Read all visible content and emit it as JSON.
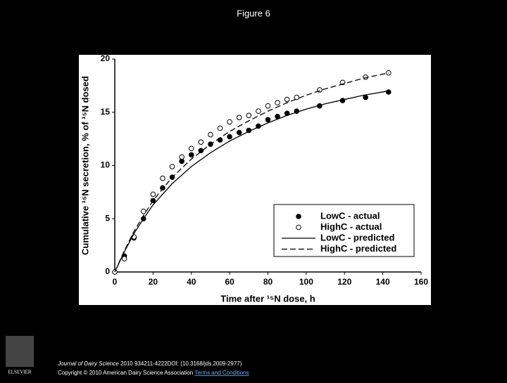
{
  "title": "Figure 6",
  "chart_data": {
    "type": "scatter",
    "xlabel": "Time after ¹⁵N dose, h",
    "ylabel": "Cumulative ¹⁵N secretion, % of ¹⁵N dosed",
    "xlim": [
      0,
      160
    ],
    "xticks": [
      0,
      20,
      40,
      60,
      80,
      100,
      120,
      140,
      160
    ],
    "ylim": [
      0,
      20
    ],
    "yticks": [
      0,
      5,
      10,
      15,
      20
    ],
    "legend": "lower right",
    "series": [
      {
        "name": "LowC - actual",
        "color": "#000000",
        "marker": "filled",
        "x": [
          5,
          10,
          15,
          20,
          25,
          30,
          35,
          40,
          45,
          50,
          55,
          60,
          65,
          70,
          75,
          80,
          85,
          90,
          95,
          107,
          119,
          131,
          143
        ],
        "values": [
          1.5,
          3.2,
          5.0,
          6.7,
          7.9,
          8.9,
          10.4,
          11.0,
          11.4,
          12.0,
          12.4,
          12.7,
          13.1,
          13.3,
          13.7,
          14.3,
          14.6,
          14.9,
          15.1,
          15.6,
          16.1,
          16.4,
          16.9
        ]
      },
      {
        "name": "HighC - actual",
        "color": "#000000",
        "marker": "open",
        "x": [
          0,
          5,
          10,
          15,
          20,
          25,
          30,
          35,
          40,
          45,
          50,
          55,
          60,
          65,
          70,
          75,
          80,
          85,
          90,
          95,
          107,
          119,
          131,
          143
        ],
        "values": [
          0,
          1.25,
          3.3,
          5.7,
          7.3,
          8.8,
          9.9,
          10.8,
          11.6,
          12.2,
          12.9,
          13.5,
          14.1,
          14.5,
          14.7,
          15.1,
          15.6,
          15.9,
          16.2,
          16.4,
          17.1,
          17.8,
          18.3,
          18.7
        ]
      },
      {
        "name": "LowC - predicted",
        "color": "#000000",
        "line": "solid",
        "x": [
          0,
          5,
          10,
          15,
          20,
          30,
          40,
          50,
          60,
          70,
          80,
          90,
          100,
          110,
          120,
          130,
          143
        ],
        "values": [
          0,
          1.9,
          3.6,
          5.0,
          6.3,
          8.3,
          9.9,
          11.2,
          12.3,
          13.2,
          14.0,
          14.7,
          15.3,
          15.8,
          16.2,
          16.6,
          17.0
        ]
      },
      {
        "name": "HighC - predicted",
        "color": "#000000",
        "line": "dashed",
        "x": [
          0,
          5,
          10,
          15,
          20,
          30,
          40,
          50,
          60,
          70,
          80,
          90,
          100,
          110,
          120,
          130,
          143
        ],
        "values": [
          0,
          2.0,
          3.8,
          5.3,
          6.7,
          8.9,
          10.6,
          12.0,
          13.2,
          14.2,
          15.1,
          15.9,
          16.6,
          17.2,
          17.7,
          18.2,
          18.7
        ]
      }
    ]
  },
  "logo": "ELSEVIER",
  "footer": {
    "journal": "Journal of Dairy Science",
    "citation": "2010 934211-4222DOI: (10.3168/jds.2009-2977)",
    "copyright": "Copyright © 2010 American Dairy Science Association",
    "link": "Terms and Conditions"
  }
}
